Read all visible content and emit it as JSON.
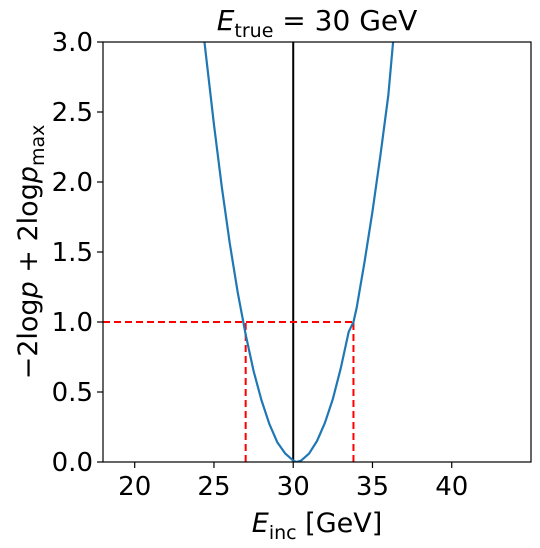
{
  "chart_data": {
    "type": "line",
    "title": {
      "prefix": "E",
      "subscript": "true",
      "suffix": " = 30 GeV"
    },
    "xlabel": {
      "prefix": "E",
      "subscript": "inc",
      "suffix": " [GeV]"
    },
    "ylabel": {
      "part1": "−2log",
      "p1": "p",
      "part2": " + 2log",
      "p2": "p",
      "subscript": "max"
    },
    "xlim": [
      18,
      45
    ],
    "ylim": [
      0,
      3
    ],
    "xticks": [
      20,
      25,
      30,
      35,
      40
    ],
    "xtick_labels": [
      "20",
      "25",
      "30",
      "35",
      "40"
    ],
    "yticks": [
      0,
      0.5,
      1,
      1.5,
      2,
      2.5,
      3
    ],
    "ytick_labels": [
      "0.0",
      "0.5",
      "1.0",
      "1.5",
      "2.0",
      "2.5",
      "3.0"
    ],
    "grid": false,
    "series": [
      {
        "kind": "curve",
        "color": "#1f77b4",
        "x": [
          24.4,
          25.0,
          25.5,
          26.0,
          26.5,
          27.0,
          27.5,
          28.0,
          28.5,
          29.0,
          29.5,
          30.0,
          30.2,
          30.5,
          31.0,
          31.5,
          32.0,
          32.5,
          33.0,
          33.5,
          33.8,
          34.0,
          34.5,
          35.0,
          35.5,
          36.0,
          36.3
        ],
        "y": [
          3.0,
          2.41,
          1.96,
          1.56,
          1.21,
          0.91,
          0.65,
          0.44,
          0.27,
          0.14,
          0.06,
          0.01,
          0.0,
          0.01,
          0.06,
          0.15,
          0.28,
          0.45,
          0.67,
          0.93,
          1.0,
          1.1,
          1.43,
          1.79,
          2.19,
          2.62,
          3.0
        ]
      }
    ],
    "reference_lines": [
      {
        "kind": "vertical",
        "x": 30.0,
        "color": "#000000"
      },
      {
        "kind": "horizontal-dashed",
        "y": 1.0,
        "x_from": 18,
        "x_to": 33.8,
        "color": "#ff0000"
      },
      {
        "kind": "vertical-dashed",
        "x": 27.0,
        "y_from": 0,
        "y_to": 1.0,
        "color": "#ff0000"
      },
      {
        "kind": "vertical-dashed",
        "x": 33.8,
        "y_from": 0,
        "y_to": 1.0,
        "color": "#ff0000"
      }
    ]
  }
}
